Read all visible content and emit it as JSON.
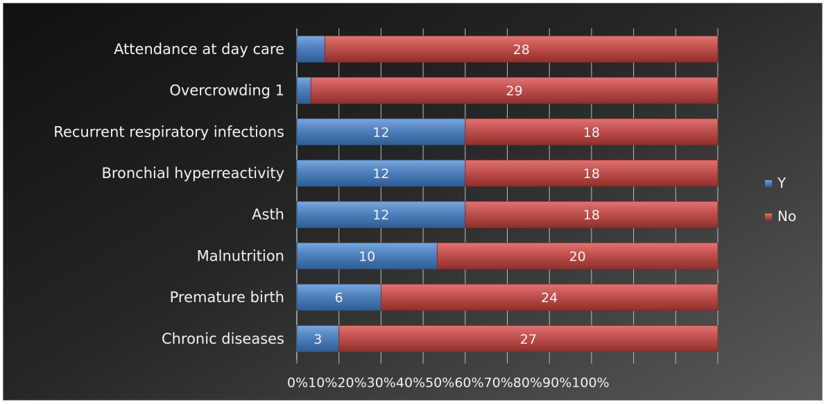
{
  "chart_data": {
    "type": "bar",
    "orientation": "horizontal",
    "stacked": "percent",
    "categories": [
      "Attendance at day care",
      "Overcrowding 1",
      "Recurrent respiratory infections",
      "Bronchial hyperreactivity",
      "Asth",
      "Malnutrition",
      "Premature birth",
      "Chronic diseases"
    ],
    "series": [
      {
        "name": "Y",
        "color": "#4f81bd",
        "values": [
          2,
          1,
          12,
          12,
          12,
          10,
          6,
          3
        ],
        "labels": [
          "",
          "",
          "12",
          "12",
          "12",
          "10",
          "6",
          "3"
        ]
      },
      {
        "name": "No",
        "color": "#c0504d",
        "values": [
          28,
          29,
          18,
          18,
          18,
          20,
          24,
          27
        ],
        "labels": [
          "28",
          "29",
          "18",
          "18",
          "18",
          "20",
          "24",
          "27"
        ]
      }
    ],
    "xticks": [
      "0%",
      "10%",
      "20%",
      "30%",
      "40%",
      "50%",
      "60%",
      "70%",
      "80%",
      "90%",
      "100%"
    ],
    "xlim": [
      0,
      100
    ],
    "grid": "vertical",
    "legend": "right",
    "title": "",
    "xlabel": "",
    "ylabel": ""
  }
}
